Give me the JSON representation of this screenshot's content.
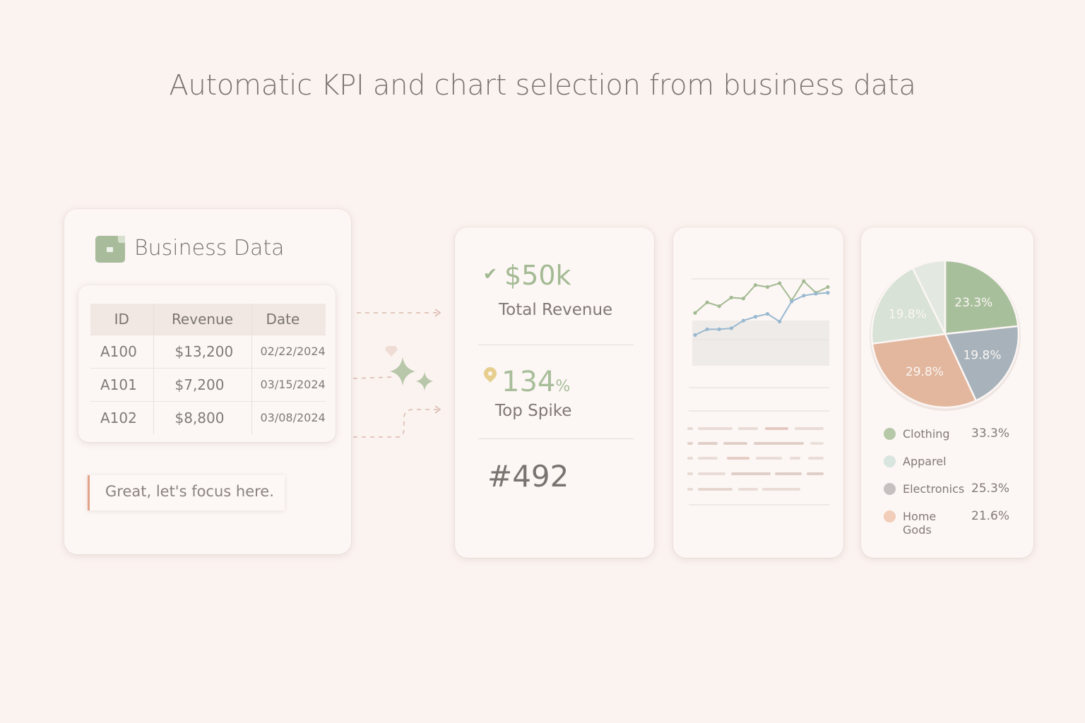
{
  "title": "Automatic KPI and chart selection from business data",
  "data_card": {
    "title": "Business Data",
    "icon": "spreadsheet-file-icon",
    "table": {
      "headers": [
        "ID",
        "Revenue",
        "Date"
      ],
      "rows": [
        [
          "A100",
          "$13,200",
          "02/22/2024"
        ],
        [
          "A101",
          "$7,200",
          "03/15/2024"
        ],
        [
          "A102",
          "$8,800",
          "03/08/2024"
        ]
      ]
    },
    "feedback": "Great, let's focus here."
  },
  "kpi_card": {
    "kpi1_value": "$50k",
    "kpi1_label": "Total Revenue",
    "kpi2_value": "134",
    "kpi2_unit": "%",
    "kpi2_label": "Top Spike",
    "kpi3_value": "#492"
  },
  "colors": {
    "green": "#a3ba93",
    "blue": "#98b8d0",
    "sage": "#a8bf9c",
    "slate": "#a7b2bb",
    "peach": "#e3b79e",
    "pale": "#d8e2d6"
  },
  "chart_data": [
    {
      "type": "line",
      "x": [
        1,
        2,
        3,
        4,
        5,
        6,
        7,
        8,
        9,
        10,
        11,
        12
      ],
      "series": [
        {
          "values": [
            5.5,
            6.6,
            6.2,
            7.1,
            7.0,
            8.4,
            8.2,
            8.6,
            6.8,
            8.8,
            7.6,
            8.2
          ]
        },
        {
          "values": [
            3.2,
            3.8,
            3.8,
            3.9,
            4.7,
            5.1,
            5.4,
            4.6,
            6.7,
            7.3,
            7.5,
            7.6
          ]
        }
      ],
      "ylim": [
        0,
        10
      ]
    },
    {
      "type": "pie",
      "slices": [
        {
          "label": "",
          "value": 23.3,
          "display": "23.3%"
        },
        {
          "label": "",
          "value": 19.8,
          "display": "19.8%"
        },
        {
          "label": "",
          "value": 29.8,
          "display": "29.8%"
        },
        {
          "label": "",
          "value": 19.8,
          "display": "19.8%"
        },
        {
          "label": "",
          "value": 7.3,
          "display": ""
        }
      ],
      "legend": [
        {
          "label": "Clothing",
          "value": "33.3%"
        },
        {
          "label": "Apparel",
          "value": ""
        },
        {
          "label": "Electronics",
          "value": "25.3%"
        },
        {
          "label": "Home Gods",
          "value": "21.6%"
        }
      ]
    }
  ]
}
